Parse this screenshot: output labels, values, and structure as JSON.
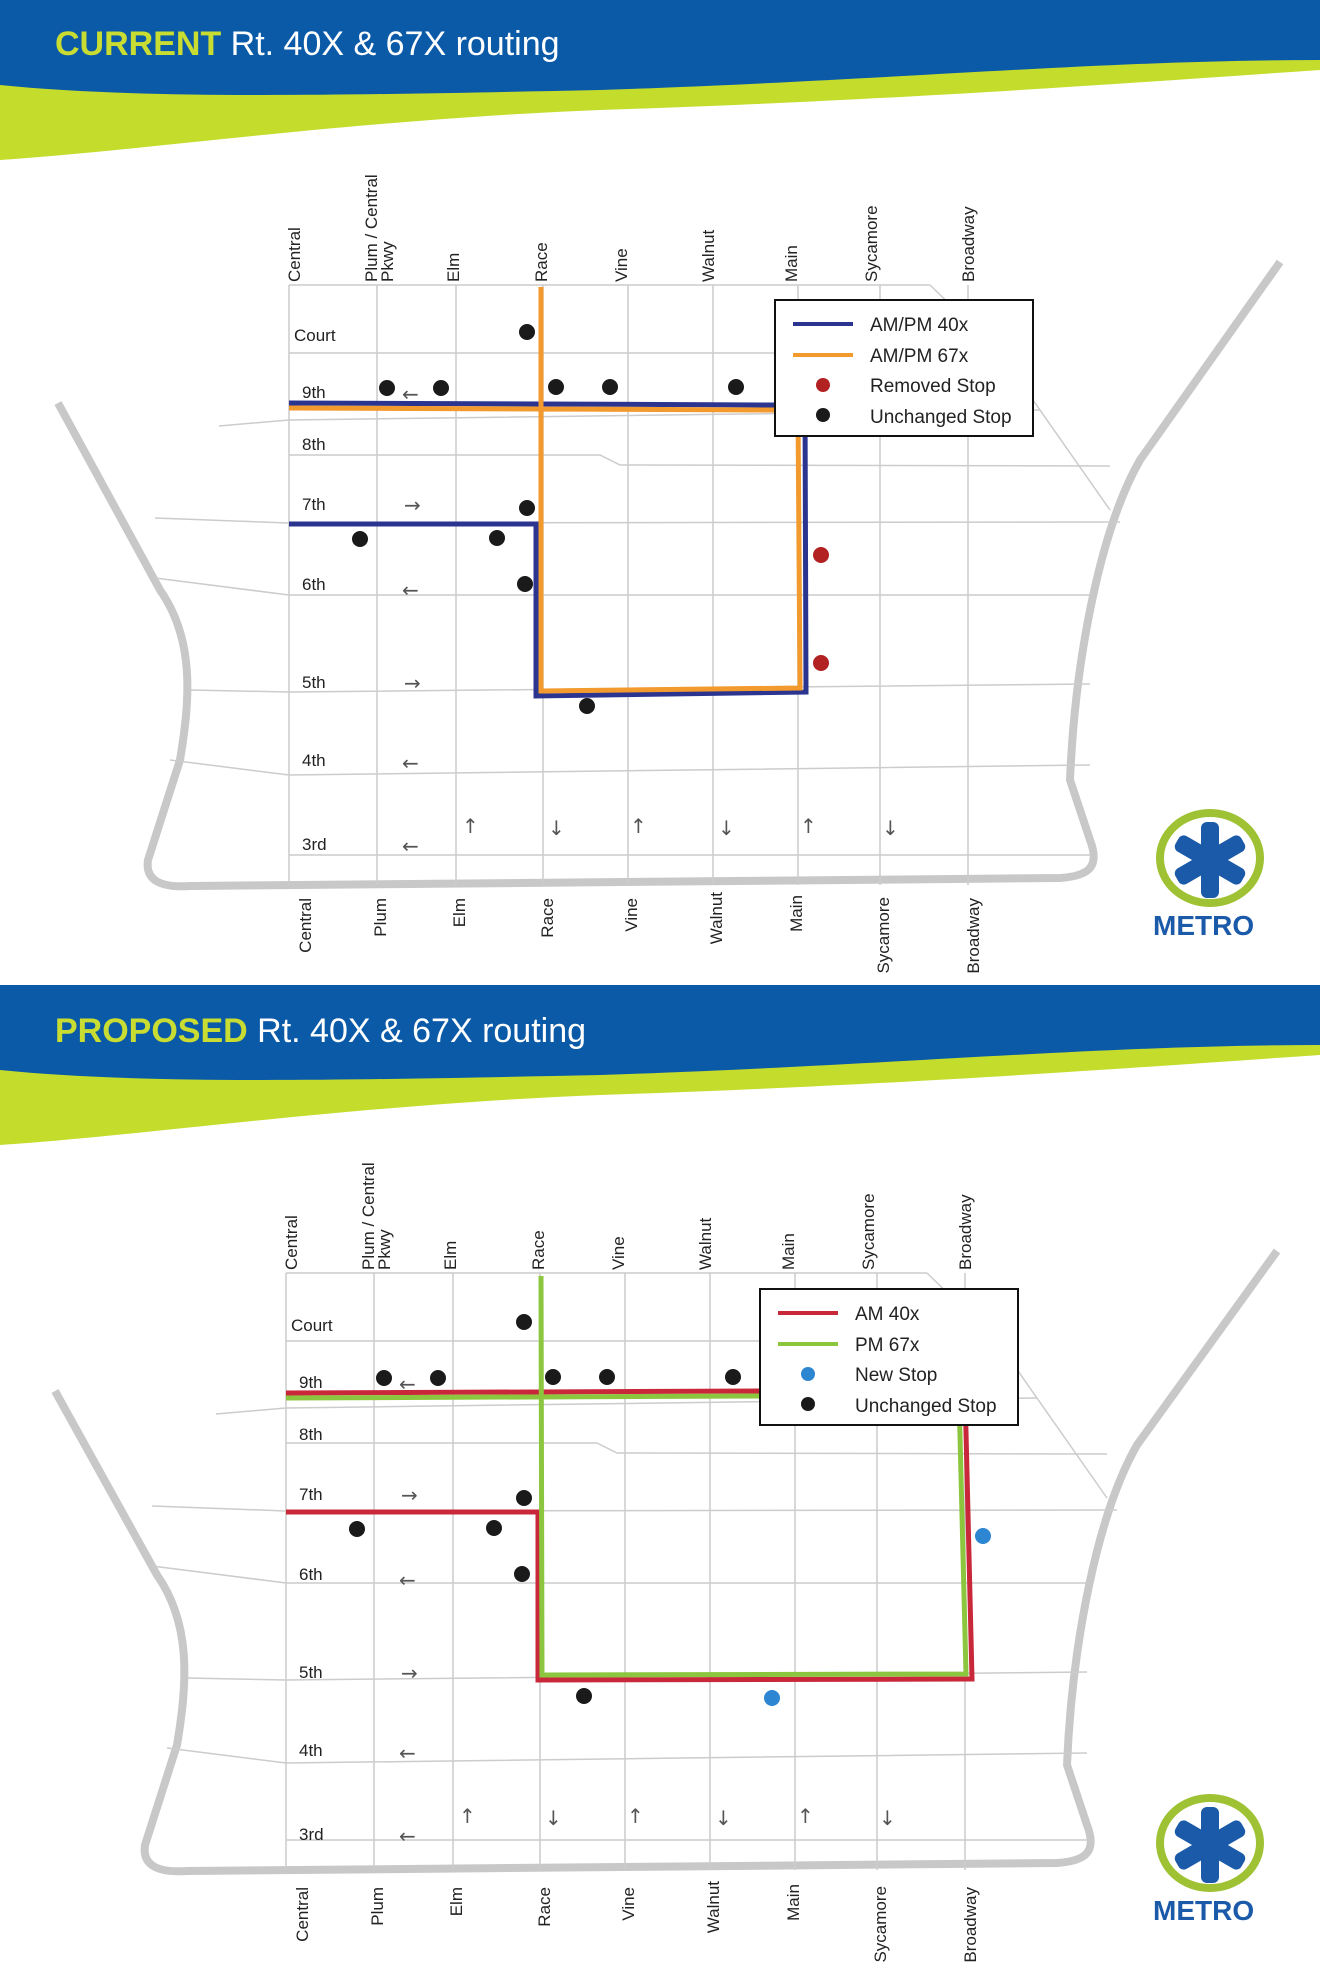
{
  "colors": {
    "header_blue": "#0b5aa8",
    "header_green": "#c4dc2c",
    "street_gray": "#cccccc",
    "outline_gray": "#c8c8c8",
    "route_40x_current": "#2b3590",
    "route_67x_current": "#f29a2e",
    "route_40x_proposed": "#c8283a",
    "route_67x_proposed": "#8cc63f",
    "removed_stop": "#b22222",
    "new_stop": "#2c86d1",
    "unchanged_stop": "#1a1a1a"
  },
  "panels": [
    {
      "id": "current",
      "title_lead": "CURRENT",
      "title_rest": " Rt. 40X & 67X routing",
      "top_streets": [
        "Central",
        "Plum / Central",
        "Pkwy",
        "Elm",
        "Race",
        "Vine",
        "Walnut",
        "Main",
        "Sycamore",
        "Broadway"
      ],
      "bottom_streets": [
        "Central",
        "Plum",
        "Elm",
        "Race",
        "Vine",
        "Walnut",
        "Main",
        "Sycamore",
        "Broadway"
      ],
      "cross_streets": [
        "Court",
        "9th",
        "8th",
        "7th",
        "6th",
        "5th",
        "4th",
        "3rd"
      ],
      "legend": [
        {
          "label": "AM/PM 40x",
          "kind": "line",
          "color": "#2b3590"
        },
        {
          "label": "AM/PM 67x",
          "kind": "line",
          "color": "#f29a2e"
        },
        {
          "label": "Removed Stop",
          "kind": "dot",
          "color": "#b22222"
        },
        {
          "label": "Unchanged Stop",
          "kind": "dot",
          "color": "#1a1a1a"
        }
      ],
      "logo": "METRO"
    },
    {
      "id": "proposed",
      "title_lead": "PROPOSED",
      "title_rest": " Rt. 40X & 67X routing",
      "top_streets": [
        "Central",
        "Plum / Central",
        "Pkwy",
        "Elm",
        "Race",
        "Vine",
        "Walnut",
        "Main",
        "Sycamore",
        "Broadway"
      ],
      "bottom_streets": [
        "Central",
        "Plum",
        "Elm",
        "Race",
        "Vine",
        "Walnut",
        "Main",
        "Sycamore",
        "Broadway"
      ],
      "cross_streets": [
        "Court",
        "9th",
        "8th",
        "7th",
        "6th",
        "5th",
        "4th",
        "3rd"
      ],
      "legend": [
        {
          "label": "AM 40x",
          "kind": "line",
          "color": "#c8283a"
        },
        {
          "label": "PM 67x",
          "kind": "line",
          "color": "#8cc63f"
        },
        {
          "label": "New Stop",
          "kind": "dot",
          "color": "#2c86d1"
        },
        {
          "label": "Unchanged Stop",
          "kind": "dot",
          "color": "#1a1a1a"
        }
      ],
      "logo": "METRO"
    }
  ],
  "arrows": {
    "right": "→",
    "left": "←",
    "up": "↑",
    "down": "↓"
  }
}
